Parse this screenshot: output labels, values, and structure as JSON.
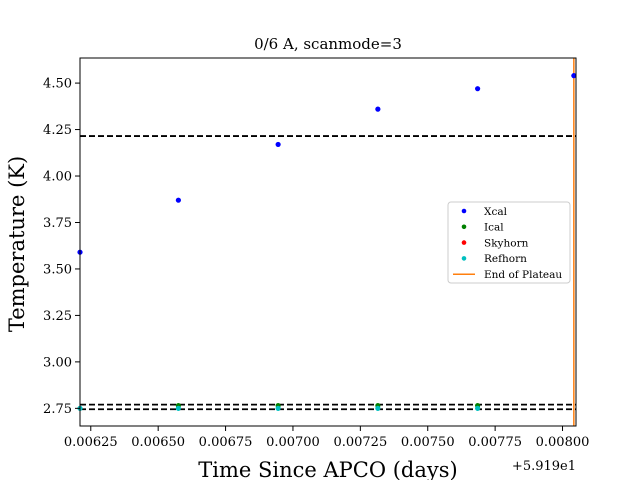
{
  "chart_data": {
    "type": "scatter",
    "title": "0/6 A, scanmode=3",
    "xlabel": "Time Since APCO (days)",
    "ylabel": "Temperature (K)",
    "x_offset_label": "+5.919e1",
    "xlim": [
      0.00621,
      0.00805
    ],
    "ylim": [
      2.655,
      4.635
    ],
    "x_ticks": [
      0.00625,
      0.0065,
      0.00675,
      0.007,
      0.00725,
      0.0075,
      0.00775,
      0.008
    ],
    "x_tick_labels": [
      "0.00625",
      "0.00650",
      "0.00675",
      "0.00700",
      "0.00725",
      "0.00750",
      "0.00775",
      "0.00800"
    ],
    "y_ticks": [
      2.75,
      3.0,
      3.25,
      3.5,
      3.75,
      4.0,
      4.25,
      4.5
    ],
    "y_tick_labels": [
      "2.75",
      "3.00",
      "3.25",
      "3.50",
      "3.75",
      "4.00",
      "4.25",
      "4.50"
    ],
    "grid": false,
    "legend_position": "center-right",
    "hlines": [
      {
        "y": 4.215,
        "style": "dashed",
        "color": "#000000"
      },
      {
        "y": 2.77,
        "style": "dashed",
        "color": "#000000"
      },
      {
        "y": 2.745,
        "style": "dashed",
        "color": "#000000"
      }
    ],
    "vline": {
      "name": "End of Plateau",
      "x": 0.008042,
      "color": "#ff7f0e"
    },
    "series": [
      {
        "name": "Xcal",
        "color": "#0000ff",
        "x": [
          0.00621,
          0.006575,
          0.006945,
          0.007315,
          0.007685,
          0.008042
        ],
        "y": [
          3.59,
          3.87,
          4.17,
          4.36,
          4.47,
          4.54
        ]
      },
      {
        "name": "Ical",
        "color": "#008000",
        "x": [
          0.006575,
          0.006945,
          0.007315,
          0.007685
        ],
        "y": [
          2.765,
          2.765,
          2.765,
          2.765
        ]
      },
      {
        "name": "Skyhorn",
        "color": "#ff0000",
        "x": [],
        "y": []
      },
      {
        "name": "Refhorn",
        "color": "#00bfbf",
        "x": [
          0.00621,
          0.006575,
          0.006945,
          0.007315,
          0.007685
        ],
        "y": [
          2.75,
          2.75,
          2.75,
          2.75,
          2.75
        ]
      }
    ]
  }
}
